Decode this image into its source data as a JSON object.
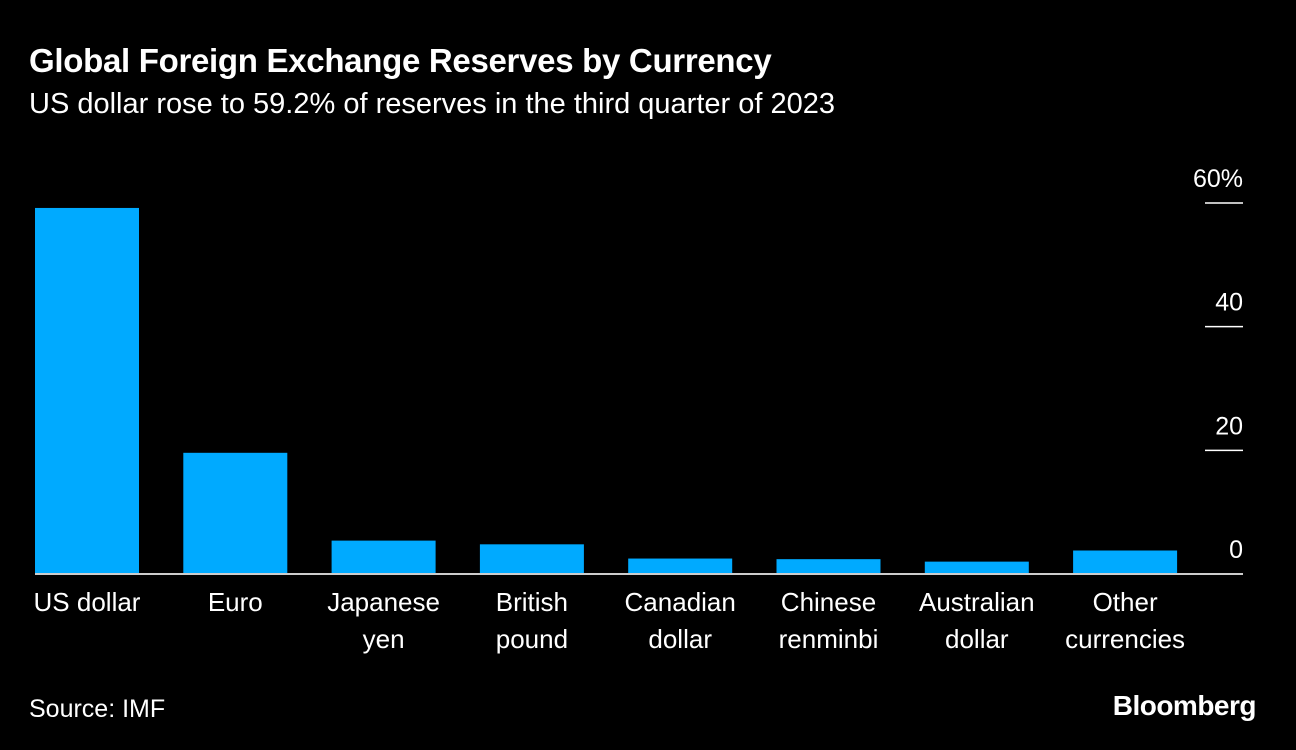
{
  "chart_data": {
    "type": "bar",
    "title": "Global Foreign Exchange Reserves by Currency",
    "subtitle": "US dollar rose to 59.2% of reserves in the third quarter of 2023",
    "categories": [
      [
        "US dollar"
      ],
      [
        "Euro"
      ],
      [
        "Japanese",
        "yen"
      ],
      [
        "British",
        "pound"
      ],
      [
        "Canadian",
        "dollar"
      ],
      [
        "Chinese",
        "renminbi"
      ],
      [
        "Australian",
        "dollar"
      ],
      [
        "Other",
        "currencies"
      ]
    ],
    "values": [
      59.2,
      19.6,
      5.4,
      4.8,
      2.5,
      2.4,
      2.0,
      3.8
    ],
    "ylim": [
      0,
      60
    ],
    "yticks": [
      0,
      20,
      40,
      60
    ],
    "ytick_labels": [
      "0",
      "20",
      "40",
      "60%"
    ],
    "xlabel": "",
    "ylabel": "",
    "grid": false,
    "bar_color": "#00aaff"
  },
  "source": "Source: IMF",
  "brand": "Bloomberg"
}
